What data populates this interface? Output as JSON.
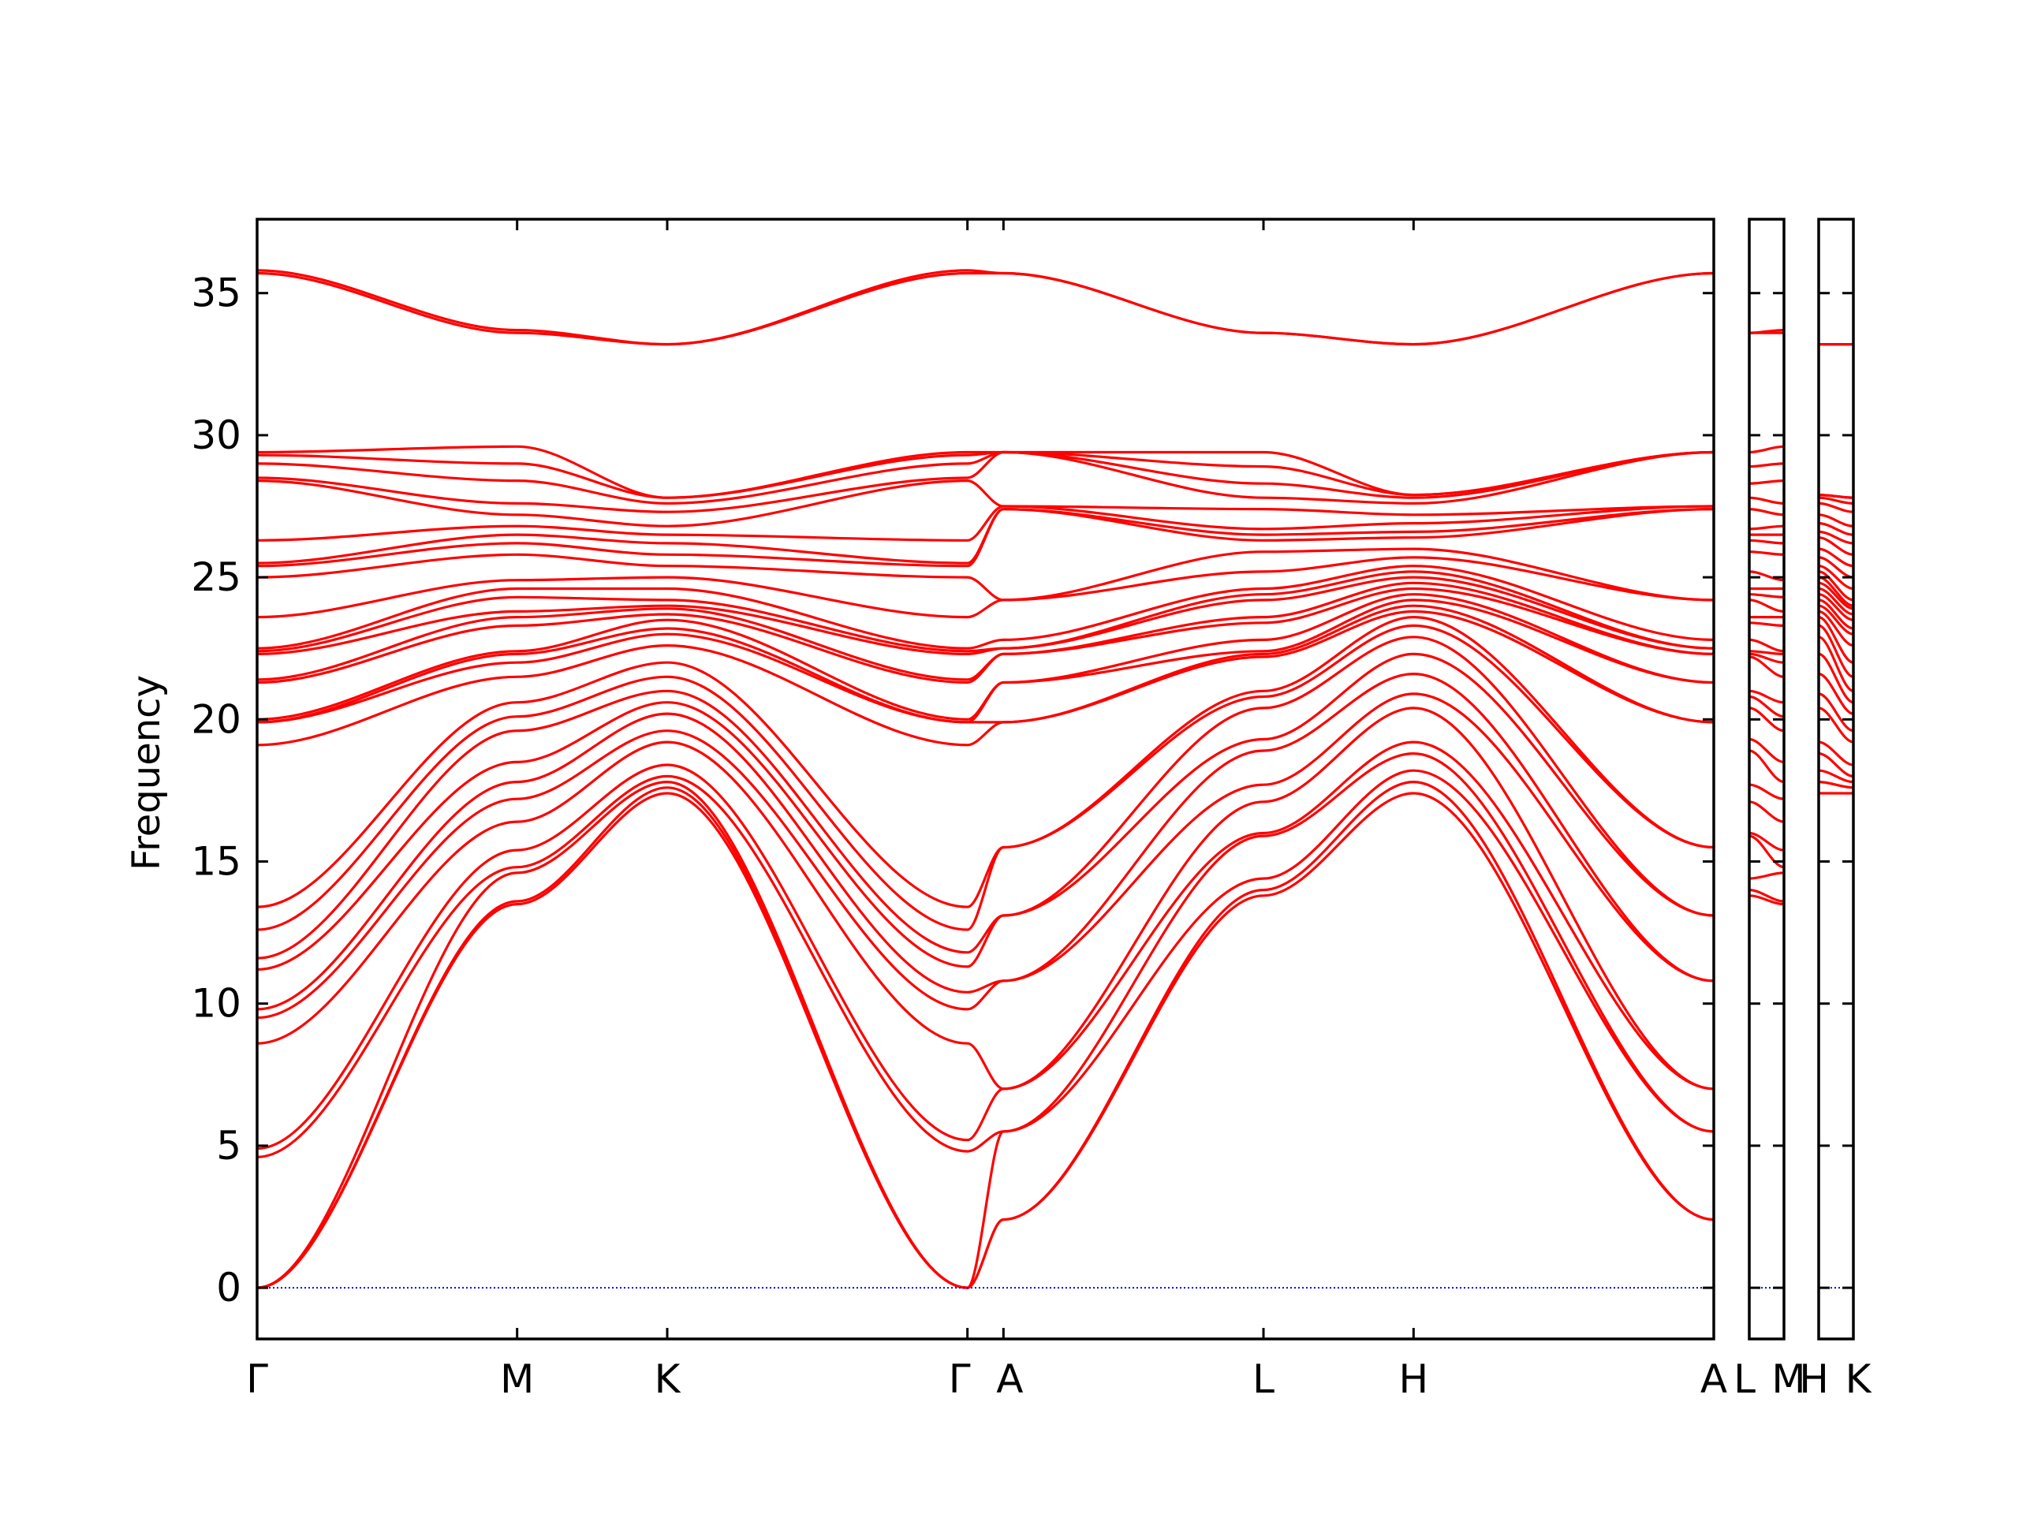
{
  "chart_data": {
    "type": "line",
    "title": "",
    "xlabel": "",
    "ylabel": "Frequency",
    "ylim": [
      -1.8,
      37.6
    ],
    "yticks": [
      0,
      5,
      10,
      15,
      20,
      25,
      30,
      35
    ],
    "ytick_labels": [
      "0",
      "5",
      "10",
      "15",
      "20",
      "25",
      "30",
      "35"
    ],
    "grid": false,
    "legend": "none",
    "line_color": "#ff0000",
    "zero_line_color": "#0000ff",
    "path_segments": [
      {
        "labels": [
          "Γ",
          "M",
          "K",
          "Γ",
          "A",
          "L",
          "H",
          "A"
        ],
        "x_label_text": [
          "Γ",
          "M",
          "K",
          "Γ",
          "A",
          "L",
          "H",
          "A"
        ],
        "x_positions": [
          0,
          0.5774,
          0.9107,
          1.5774,
          1.6574,
          2.2348,
          2.5681,
          3.2348
        ],
        "bands": [
          [
            0,
            13.5,
            17.4,
            0,
            2.4,
            13.8,
            17.4,
            2.4
          ],
          [
            0,
            13.6,
            17.6,
            0,
            2.4,
            14.0,
            17.8,
            2.4
          ],
          [
            0,
            14.6,
            17.8,
            0,
            5.5,
            14.4,
            18.2,
            5.5
          ],
          [
            4.6,
            14.8,
            18.0,
            4.8,
            5.5,
            15.9,
            18.8,
            5.5
          ],
          [
            4.9,
            15.4,
            18.4,
            5.2,
            7.0,
            16.0,
            19.2,
            7.0
          ],
          [
            8.6,
            16.4,
            19.2,
            8.6,
            7.0,
            17.1,
            20.4,
            7.0
          ],
          [
            9.5,
            17.2,
            19.6,
            9.8,
            10.8,
            17.7,
            20.9,
            10.8
          ],
          [
            9.8,
            17.8,
            20.2,
            10.4,
            10.8,
            18.9,
            21.6,
            10.8
          ],
          [
            11.2,
            18.5,
            20.6,
            11.3,
            13.1,
            19.3,
            22.3,
            13.1
          ],
          [
            11.6,
            19.6,
            21.0,
            11.8,
            13.1,
            20.4,
            22.9,
            13.1
          ],
          [
            12.6,
            20.1,
            21.5,
            12.6,
            15.5,
            20.8,
            23.3,
            15.5
          ],
          [
            13.4,
            20.6,
            22.0,
            13.4,
            15.5,
            21.0,
            23.6,
            15.5
          ],
          [
            19.1,
            21.5,
            22.6,
            19.1,
            19.9,
            22.2,
            23.8,
            19.9
          ],
          [
            19.9,
            22.0,
            23.0,
            19.9,
            19.9,
            22.3,
            24.0,
            19.9
          ],
          [
            19.9,
            22.3,
            23.2,
            19.9,
            21.3,
            22.4,
            24.2,
            21.3
          ],
          [
            20.0,
            22.4,
            23.5,
            20.0,
            21.3,
            22.8,
            24.4,
            21.3
          ],
          [
            21.3,
            23.3,
            23.7,
            21.3,
            22.3,
            23.4,
            24.6,
            22.3
          ],
          [
            21.4,
            23.6,
            23.9,
            21.4,
            22.3,
            23.6,
            24.8,
            22.3
          ],
          [
            22.3,
            23.8,
            24.0,
            22.3,
            22.5,
            24.2,
            25.0,
            22.5
          ],
          [
            22.4,
            24.3,
            24.2,
            22.4,
            22.5,
            24.4,
            25.2,
            22.5
          ],
          [
            22.5,
            24.6,
            24.6,
            22.5,
            22.8,
            24.6,
            25.4,
            22.8
          ],
          [
            23.6,
            24.9,
            25.0,
            23.6,
            24.2,
            25.2,
            25.7,
            24.2
          ],
          [
            25.0,
            25.8,
            25.4,
            25.0,
            24.2,
            25.9,
            26.0,
            24.2
          ],
          [
            25.4,
            26.2,
            25.8,
            25.4,
            27.4,
            26.3,
            26.4,
            27.4
          ],
          [
            25.5,
            26.5,
            26.2,
            25.5,
            27.4,
            26.5,
            26.6,
            27.4
          ],
          [
            26.3,
            26.8,
            26.5,
            26.3,
            27.5,
            26.7,
            26.9,
            27.5
          ],
          [
            28.4,
            27.2,
            26.8,
            28.4,
            27.5,
            27.4,
            27.2,
            27.5
          ],
          [
            28.5,
            27.6,
            27.3,
            28.5,
            29.4,
            27.8,
            27.6,
            29.4
          ],
          [
            29.0,
            28.4,
            27.6,
            29.0,
            29.4,
            28.3,
            27.8,
            29.4
          ],
          [
            29.3,
            29.0,
            27.8,
            29.3,
            29.4,
            28.9,
            27.9,
            29.4
          ],
          [
            29.4,
            29.6,
            27.8,
            29.4,
            29.4,
            29.4,
            27.9,
            29.4
          ],
          [
            35.7,
            33.6,
            33.2,
            35.7,
            35.7,
            33.6,
            33.2,
            35.7
          ],
          [
            35.8,
            33.7,
            33.2,
            35.8,
            35.7,
            33.6,
            33.2,
            35.7
          ]
        ]
      },
      {
        "labels": [
          "L",
          "M"
        ],
        "x_label_text": [
          "L",
          "M"
        ],
        "bands": [
          [
            13.8,
            13.5
          ],
          [
            14.0,
            13.6
          ],
          [
            14.4,
            14.6
          ],
          [
            15.9,
            14.8
          ],
          [
            16.0,
            15.4
          ],
          [
            17.1,
            16.4
          ],
          [
            17.7,
            17.2
          ],
          [
            18.9,
            17.8
          ],
          [
            19.3,
            18.5
          ],
          [
            20.4,
            19.6
          ],
          [
            20.8,
            20.1
          ],
          [
            21.0,
            20.6
          ],
          [
            22.2,
            21.5
          ],
          [
            22.3,
            22.0
          ],
          [
            22.4,
            22.3
          ],
          [
            22.8,
            22.4
          ],
          [
            23.4,
            23.3
          ],
          [
            23.6,
            23.6
          ],
          [
            24.2,
            23.8
          ],
          [
            24.4,
            24.3
          ],
          [
            24.6,
            24.6
          ],
          [
            25.2,
            24.9
          ],
          [
            25.9,
            25.8
          ],
          [
            26.3,
            26.2
          ],
          [
            26.5,
            26.5
          ],
          [
            26.7,
            26.8
          ],
          [
            27.4,
            27.2
          ],
          [
            27.8,
            27.6
          ],
          [
            28.3,
            28.4
          ],
          [
            28.9,
            29.0
          ],
          [
            29.4,
            29.6
          ],
          [
            33.6,
            33.6
          ],
          [
            33.6,
            33.7
          ]
        ]
      },
      {
        "labels": [
          "H",
          "K"
        ],
        "x_label_text": [
          "H",
          "K"
        ],
        "bands": [
          [
            17.4,
            17.4
          ],
          [
            17.8,
            17.6
          ],
          [
            18.2,
            17.8
          ],
          [
            18.8,
            18.0
          ],
          [
            19.2,
            18.4
          ],
          [
            20.4,
            19.2
          ],
          [
            20.9,
            19.6
          ],
          [
            21.6,
            20.2
          ],
          [
            22.3,
            20.6
          ],
          [
            22.9,
            21.0
          ],
          [
            23.3,
            21.5
          ],
          [
            23.6,
            22.0
          ],
          [
            23.8,
            22.6
          ],
          [
            24.0,
            23.0
          ],
          [
            24.2,
            23.2
          ],
          [
            24.4,
            23.5
          ],
          [
            24.6,
            23.7
          ],
          [
            24.8,
            23.9
          ],
          [
            25.0,
            24.0
          ],
          [
            25.2,
            24.2
          ],
          [
            25.4,
            24.6
          ],
          [
            25.7,
            25.0
          ],
          [
            26.0,
            25.4
          ],
          [
            26.4,
            25.8
          ],
          [
            26.6,
            26.2
          ],
          [
            26.9,
            26.5
          ],
          [
            27.2,
            26.8
          ],
          [
            27.6,
            27.3
          ],
          [
            27.8,
            27.6
          ],
          [
            27.9,
            27.8
          ],
          [
            27.9,
            27.8
          ],
          [
            33.2,
            33.2
          ],
          [
            33.2,
            33.2
          ]
        ]
      }
    ]
  }
}
